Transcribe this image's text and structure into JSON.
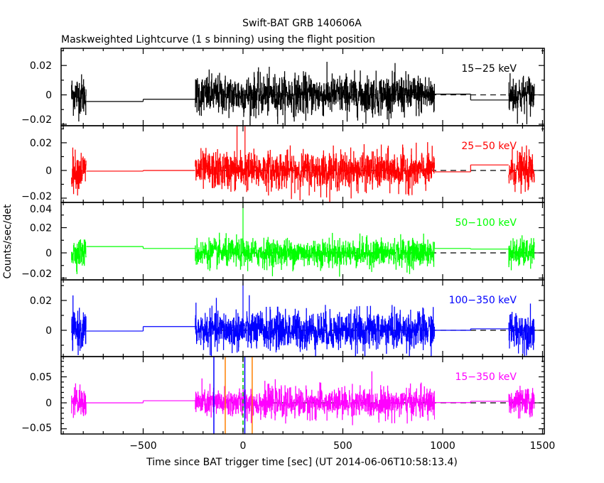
{
  "chart_data": {
    "type": "line",
    "title": "Swift-BAT GRB 140606A",
    "subtitle": "Maskweighted Lightcurve (1 s binning) using the flight position",
    "xlabel": "Time since BAT trigger time [sec] (UT 2014-06-06T10:58:13.4)",
    "ylabel": "Counts/sec/det",
    "xlim": [
      -911,
      1509
    ],
    "xticks": [
      -500,
      0,
      500,
      1000,
      1500
    ],
    "xtick_labels": [
      "−500",
      "0",
      "500",
      "1000",
      "1500"
    ],
    "grid": false,
    "noise_segments": [
      [
        -860,
        -785
      ],
      [
        -240,
        960
      ],
      [
        1330,
        1460
      ]
    ],
    "dashed_zero_from": -107,
    "panels": [
      {
        "label": "15−25 keV",
        "color": "#000000",
        "ylim": [
          -0.021,
          0.0317
        ],
        "yticks": [
          -0.02,
          0,
          0.02
        ],
        "ytick_labels": [
          "−0.02",
          "0",
          "0.02"
        ],
        "minor": 0.01,
        "noise_std": 0.0068,
        "steps": [
          [
            -785,
            -500,
            -0.0045
          ],
          [
            -500,
            -240,
            -0.003
          ],
          [
            960,
            1140,
            0.0005
          ],
          [
            1140,
            1330,
            -0.0035
          ]
        ],
        "spikes": []
      },
      {
        "label": "25−50 keV",
        "color": "#ff0000",
        "ylim": [
          -0.0231,
          0.0323
        ],
        "yticks": [
          -0.02,
          0,
          0.02
        ],
        "ytick_labels": [
          "−0.02",
          "0",
          "0.02"
        ],
        "minor": 0.01,
        "noise_std": 0.0068,
        "steps": [
          [
            -785,
            -500,
            -0.0005
          ],
          [
            -500,
            -240,
            0
          ],
          [
            960,
            1140,
            -0.001
          ],
          [
            1140,
            1330,
            0.004
          ]
        ],
        "spikes": [
          [
            -30,
            0.04
          ],
          [
            10,
            0.04
          ]
        ]
      },
      {
        "label": "50−100 keV",
        "color": "#00ff00",
        "ylim": [
          -0.0214,
          0.04
        ],
        "yticks": [
          -0.02,
          0,
          0.02,
          0.04
        ],
        "ytick_labels": [
          "−0.02",
          "0",
          "0.02",
          "0.04"
        ],
        "minor": 0.01,
        "noise_std": 0.0055,
        "steps": [
          [
            -785,
            -500,
            0.005
          ],
          [
            -500,
            -240,
            0.0035
          ],
          [
            960,
            1140,
            0.0035
          ],
          [
            1140,
            1330,
            0.003
          ]
        ],
        "spikes": [
          [
            0,
            0.045
          ]
        ]
      },
      {
        "label": "100−350 keV",
        "color": "#0000ff",
        "ylim": [
          -0.0176,
          0.0338
        ],
        "yticks": [
          0,
          0.02
        ],
        "ytick_labels": [
          "0",
          "0.02"
        ],
        "minor": 0.01,
        "noise_std": 0.0065,
        "steps": [
          [
            -785,
            -500,
            -0.0005
          ],
          [
            -500,
            -240,
            0.0025
          ],
          [
            960,
            1140,
            0
          ],
          [
            1140,
            1330,
            0.001
          ]
        ],
        "spikes": [
          [
            0,
            0.04
          ]
        ]
      },
      {
        "label": "15−350 keV",
        "color": "#ff00ff",
        "ylim": [
          -0.06,
          0.089
        ],
        "yticks": [
          -0.05,
          0,
          0.05
        ],
        "ytick_labels": [
          "−0.05",
          "0",
          "0.05"
        ],
        "minor": 0.01,
        "noise_std": 0.014,
        "steps": [
          [
            -785,
            -500,
            0
          ],
          [
            -500,
            -240,
            0.004
          ],
          [
            960,
            1140,
            0.0005
          ],
          [
            1140,
            1330,
            0.003
          ]
        ],
        "spikes": []
      }
    ],
    "markers": [
      {
        "t": -146,
        "color": "#0000ff",
        "style": "solid"
      },
      {
        "t": -89,
        "color": "#ff8000",
        "style": "solid"
      },
      {
        "t": 0,
        "color": "#00cc00",
        "style": "dashed"
      },
      {
        "t": 9,
        "color": "#0000ff",
        "style": "solid"
      },
      {
        "t": 46,
        "color": "#ff8000",
        "style": "solid"
      }
    ]
  }
}
